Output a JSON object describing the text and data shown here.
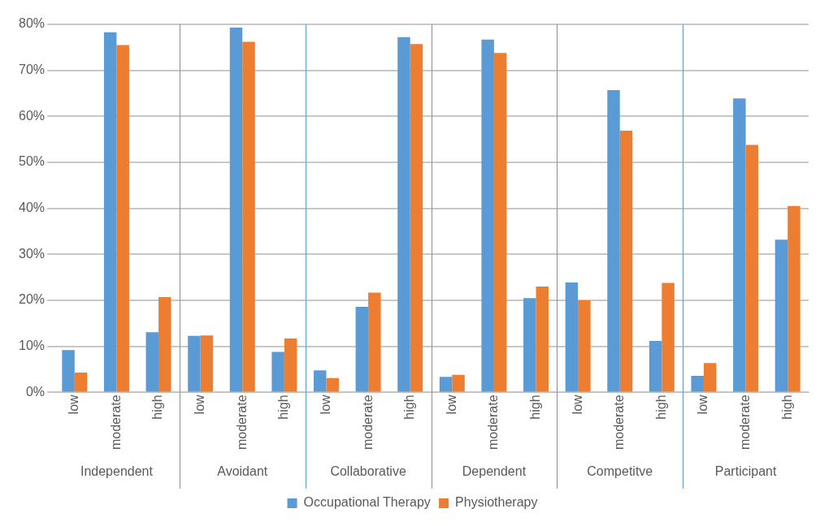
{
  "chart_data": {
    "type": "bar",
    "categories": [
      "low",
      "moderate",
      "high",
      "low",
      "moderate",
      "high",
      "low",
      "moderate",
      "high",
      "low",
      "moderate",
      "high",
      "low",
      "moderate",
      "high",
      "low",
      "moderate",
      "high"
    ],
    "series": [
      {
        "name": "Occupational Therapy",
        "color": "#5b9bd5",
        "values": [
          9.2,
          78.3,
          13.1,
          12.3,
          79.3,
          8.8,
          4.8,
          18.6,
          77.2,
          3.4,
          76.7,
          20.5,
          23.9,
          65.7,
          11.2,
          3.6,
          63.9,
          33.2
        ]
      },
      {
        "name": "Physiotherapy",
        "color": "#ed7d31",
        "values": [
          4.3,
          75.5,
          20.7,
          12.4,
          76.2,
          11.7,
          3.1,
          21.7,
          75.7,
          3.8,
          73.8,
          23.0,
          20.0,
          56.9,
          23.8,
          6.4,
          53.8,
          40.5
        ]
      }
    ],
    "annotations": [
      "Independent",
      "Avoidant",
      "Collaborative",
      "Dependent",
      "Competitve",
      "Participant"
    ],
    "ylim": [
      0,
      80
    ],
    "yticks": [
      {
        "value": 0,
        "label": "0%"
      },
      {
        "value": 10,
        "label": "10%"
      },
      {
        "value": 20,
        "label": "20%"
      },
      {
        "value": 30,
        "label": "30%"
      },
      {
        "value": 40,
        "label": "40%"
      },
      {
        "value": 50,
        "label": "50%"
      },
      {
        "value": 60,
        "label": "60%"
      },
      {
        "value": 70,
        "label": "70%"
      },
      {
        "value": 80,
        "label": "80%"
      }
    ],
    "grid": "y",
    "legend": "bottom"
  }
}
